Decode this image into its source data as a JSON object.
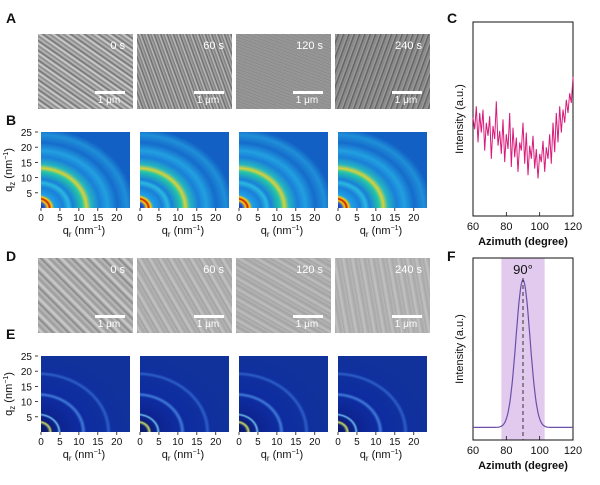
{
  "panels": {
    "A": {
      "label": "A"
    },
    "B": {
      "label": "B"
    },
    "C": {
      "label": "C"
    },
    "D": {
      "label": "D"
    },
    "E": {
      "label": "E"
    },
    "F": {
      "label": "F"
    }
  },
  "sem_top": [
    {
      "time": "0 s",
      "scale": "1 μm"
    },
    {
      "time": "60 s",
      "scale": "1 μm"
    },
    {
      "time": "120 s",
      "scale": "1 μm"
    },
    {
      "time": "240 s",
      "scale": "1 μm"
    }
  ],
  "sem_bottom": [
    {
      "time": "0 s",
      "scale": "1 μm"
    },
    {
      "time": "60 s",
      "scale": "1 μm"
    },
    {
      "time": "120 s",
      "scale": "1 μm"
    },
    {
      "time": "240 s",
      "scale": "1 μm"
    }
  ],
  "giwaxs": {
    "y_label_main": "q",
    "y_label_sub": "z",
    "y_label_unit": " (nm",
    "y_label_exp": "−1",
    "y_label_close": ")",
    "x_label_main": "q",
    "x_label_sub": "r",
    "x_label_unit": " (nm",
    "x_label_exp": "−1",
    "x_label_close": ")",
    "y_ticks": [
      "5",
      "10",
      "15",
      "20",
      "25"
    ],
    "x_ticks": [
      "0",
      "5",
      "10",
      "15",
      "20"
    ]
  },
  "chart_data": [
    {
      "panel": "C",
      "type": "line",
      "xlabel": "Azimuth (degree)",
      "ylabel": "Intensity (a.u.)",
      "xlim": [
        60,
        120
      ],
      "x_ticks": [
        "60",
        "80",
        "100",
        "120"
      ],
      "color": "#d81b7a",
      "x": [
        60,
        61,
        62,
        63,
        64,
        65,
        66,
        67,
        68,
        69,
        70,
        71,
        72,
        73,
        74,
        75,
        76,
        77,
        78,
        79,
        80,
        81,
        82,
        83,
        84,
        85,
        86,
        87,
        88,
        89,
        90,
        91,
        92,
        93,
        94,
        95,
        96,
        97,
        98,
        99,
        100,
        101,
        102,
        103,
        104,
        105,
        106,
        107,
        108,
        109,
        110,
        111,
        112,
        113,
        114,
        115,
        116,
        117,
        118,
        119,
        120
      ],
      "y": [
        0.55,
        0.48,
        0.62,
        0.4,
        0.58,
        0.46,
        0.6,
        0.35,
        0.52,
        0.44,
        0.56,
        0.3,
        0.5,
        0.42,
        0.65,
        0.38,
        0.47,
        0.33,
        0.54,
        0.28,
        0.45,
        0.36,
        0.58,
        0.25,
        0.49,
        0.31,
        0.43,
        0.22,
        0.4,
        0.35,
        0.52,
        0.27,
        0.46,
        0.2,
        0.38,
        0.3,
        0.44,
        0.24,
        0.36,
        0.18,
        0.33,
        0.28,
        0.41,
        0.22,
        0.37,
        0.3,
        0.45,
        0.27,
        0.52,
        0.34,
        0.58,
        0.4,
        0.62,
        0.46,
        0.6,
        0.52,
        0.66,
        0.58,
        0.7,
        0.64,
        0.8
      ]
    },
    {
      "panel": "F",
      "type": "line",
      "xlabel": "Azimuth (degree)",
      "ylabel": "Intensity (a.u.)",
      "xlim": [
        60,
        120
      ],
      "x_ticks": [
        "60",
        "80",
        "100",
        "120"
      ],
      "peak_label": "90°",
      "peak_center": 90,
      "peak_sigma": 4.2,
      "baseline": 0.03,
      "highlight_range": [
        77,
        103
      ],
      "color": "#6b4fa8",
      "highlight_color": "#d8b8e8"
    }
  ]
}
